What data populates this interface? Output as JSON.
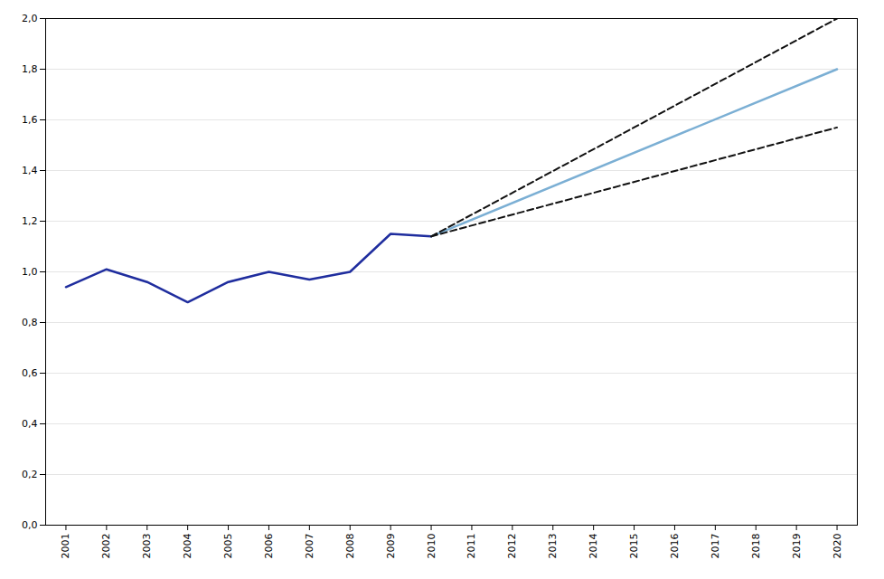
{
  "chart_data": {
    "type": "line",
    "series": [
      {
        "x": [
          2001,
          2002,
          2003,
          2004,
          2005,
          2006,
          2007,
          2008,
          2009,
          2010
        ],
        "values": [
          0.94,
          1.01,
          0.96,
          0.88,
          0.96,
          1.0,
          0.97,
          1.0,
          1.15,
          1.14
        ],
        "color": "#1F2D9E",
        "line_style": "solid"
      },
      {
        "x": [
          2010,
          2020
        ],
        "values": [
          1.14,
          1.8
        ],
        "color": "#7BAFD4",
        "line_style": "solid"
      },
      {
        "x": [
          2010,
          2020
        ],
        "values": [
          1.14,
          2.0
        ],
        "color": "#111111",
        "line_style": "dashed"
      },
      {
        "x": [
          2010,
          2020
        ],
        "values": [
          1.14,
          1.57
        ],
        "color": "#111111",
        "line_style": "dashed"
      }
    ],
    "xlim": [
      2000.5,
      2020.5
    ],
    "xticks": [
      2001,
      2002,
      2003,
      2004,
      2005,
      2006,
      2007,
      2008,
      2009,
      2010,
      2011,
      2012,
      2013,
      2014,
      2015,
      2016,
      2017,
      2018,
      2019,
      2020
    ],
    "ylim": [
      0.0,
      2.0
    ],
    "yticks": [
      {
        "value": 0.0,
        "label": "0,0"
      },
      {
        "value": 0.2,
        "label": "0,2"
      },
      {
        "value": 0.4,
        "label": "0,4"
      },
      {
        "value": 0.6,
        "label": "0,6"
      },
      {
        "value": 0.8,
        "label": "0,8"
      },
      {
        "value": 1.0,
        "label": "1,0"
      },
      {
        "value": 1.2,
        "label": "1,2"
      },
      {
        "value": 1.4,
        "label": "1,4"
      },
      {
        "value": 1.6,
        "label": "1,6"
      },
      {
        "value": 1.8,
        "label": "1,8"
      },
      {
        "value": 2.0,
        "label": "2,0"
      }
    ],
    "grid": true
  }
}
